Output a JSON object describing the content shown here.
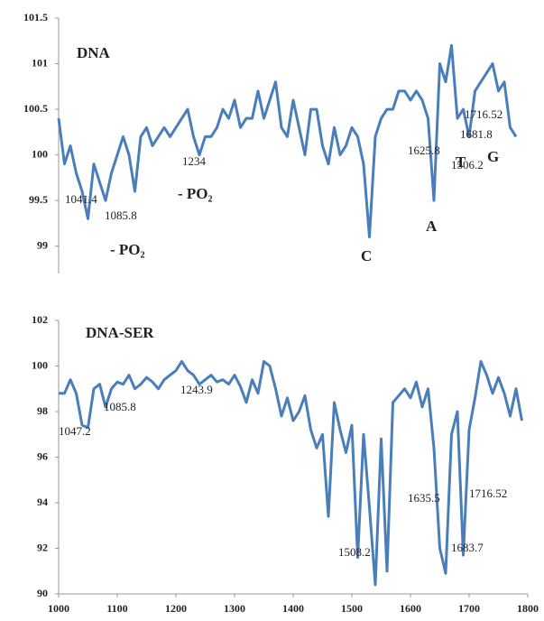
{
  "chart_data": [
    {
      "type": "line",
      "title": "DNA",
      "x": [
        1000,
        1010,
        1020,
        1030,
        1040,
        1050,
        1060,
        1070,
        1080,
        1090,
        1100,
        1110,
        1120,
        1130,
        1140,
        1150,
        1160,
        1170,
        1180,
        1190,
        1200,
        1210,
        1220,
        1230,
        1240,
        1250,
        1260,
        1270,
        1280,
        1290,
        1300,
        1310,
        1320,
        1330,
        1340,
        1350,
        1360,
        1370,
        1380,
        1390,
        1400,
        1410,
        1420,
        1430,
        1440,
        1450,
        1460,
        1470,
        1480,
        1490,
        1500,
        1510,
        1520,
        1530,
        1540,
        1550,
        1560,
        1570,
        1580,
        1590,
        1600,
        1610,
        1620,
        1630,
        1640,
        1650,
        1660,
        1670,
        1680,
        1690,
        1700,
        1710,
        1720,
        1730,
        1740,
        1750,
        1760,
        1770,
        1780
      ],
      "series": [
        {
          "color": "#4a7ebb",
          "values": [
            100.4,
            99.9,
            100.1,
            99.8,
            99.6,
            99.3,
            99.9,
            99.7,
            99.5,
            99.8,
            100.0,
            100.2,
            100.0,
            99.6,
            100.2,
            100.3,
            100.1,
            100.2,
            100.3,
            100.2,
            100.3,
            100.4,
            100.5,
            100.2,
            100.0,
            100.2,
            100.2,
            100.3,
            100.5,
            100.4,
            100.6,
            100.3,
            100.4,
            100.4,
            100.7,
            100.4,
            100.6,
            100.8,
            100.3,
            100.2,
            100.6,
            100.3,
            100.0,
            100.5,
            100.5,
            100.1,
            99.9,
            100.3,
            100.0,
            100.1,
            100.3,
            100.2,
            99.9,
            99.1,
            100.2,
            100.4,
            100.5,
            100.5,
            100.7,
            100.7,
            100.6,
            100.7,
            100.6,
            100.4,
            99.5,
            101.0,
            100.8,
            101.2,
            100.4,
            100.5,
            100.2,
            100.7,
            100.8,
            100.9,
            101.0,
            100.7,
            100.8,
            100.3,
            100.2
          ]
        }
      ],
      "xlim": [
        1000,
        1800
      ],
      "ylim": [
        98.7,
        101.5
      ],
      "yticks": [
        99,
        99.5,
        100,
        100.5,
        101,
        101.5
      ],
      "annotations": [
        "1041.4",
        "1085.8",
        "1234",
        "- PO₂",
        "- PO₂",
        "1506.2",
        "1625.8",
        "1681.8",
        "1716.52",
        "C",
        "A",
        "T",
        "G"
      ]
    },
    {
      "type": "line",
      "title": "DNA-SER",
      "x": [
        1000,
        1010,
        1020,
        1030,
        1040,
        1050,
        1060,
        1070,
        1080,
        1090,
        1100,
        1110,
        1120,
        1130,
        1140,
        1150,
        1160,
        1170,
        1180,
        1190,
        1200,
        1210,
        1220,
        1230,
        1240,
        1250,
        1260,
        1270,
        1280,
        1290,
        1300,
        1310,
        1320,
        1330,
        1340,
        1350,
        1360,
        1370,
        1380,
        1390,
        1400,
        1410,
        1420,
        1430,
        1440,
        1450,
        1460,
        1470,
        1480,
        1490,
        1500,
        1510,
        1520,
        1530,
        1540,
        1550,
        1560,
        1570,
        1580,
        1590,
        1600,
        1610,
        1620,
        1630,
        1640,
        1650,
        1660,
        1670,
        1680,
        1690,
        1700,
        1710,
        1720,
        1730,
        1740,
        1750,
        1760,
        1770,
        1780,
        1790
      ],
      "series": [
        {
          "color": "#4a7ebb",
          "values": [
            98.8,
            98.8,
            99.4,
            98.8,
            97.4,
            97.3,
            99.0,
            99.2,
            98.2,
            99.0,
            99.3,
            99.2,
            99.6,
            99.0,
            99.2,
            99.5,
            99.3,
            99.0,
            99.4,
            99.6,
            99.8,
            100.2,
            99.8,
            99.6,
            99.2,
            99.4,
            99.6,
            99.3,
            99.4,
            99.2,
            99.6,
            99.1,
            98.4,
            99.4,
            98.8,
            100.2,
            100.0,
            99.0,
            97.8,
            98.6,
            97.6,
            98.0,
            98.7,
            97.2,
            96.4,
            97.0,
            93.4,
            98.4,
            97.2,
            96.2,
            97.4,
            91.6,
            97.0,
            93.8,
            90.4,
            96.8,
            91.0,
            98.4,
            98.7,
            99.0,
            98.6,
            99.3,
            98.2,
            99.0,
            96.4,
            92.0,
            90.9,
            97.0,
            98.0,
            91.7,
            97.2,
            98.6,
            100.2,
            99.6,
            98.8,
            99.5,
            98.8,
            97.8,
            99.0,
            97.6
          ]
        }
      ],
      "xlim": [
        1000,
        1800
      ],
      "ylim": [
        90,
        102
      ],
      "xticks": [
        1000,
        1100,
        1200,
        1300,
        1400,
        1500,
        1600,
        1700,
        1800
      ],
      "yticks": [
        90,
        92,
        94,
        96,
        98,
        100,
        102
      ],
      "annotations": [
        "1047.2",
        "1085.8",
        "1243.9",
        "1508.2",
        "1635.5",
        "1683.7",
        "1716.52"
      ]
    }
  ]
}
